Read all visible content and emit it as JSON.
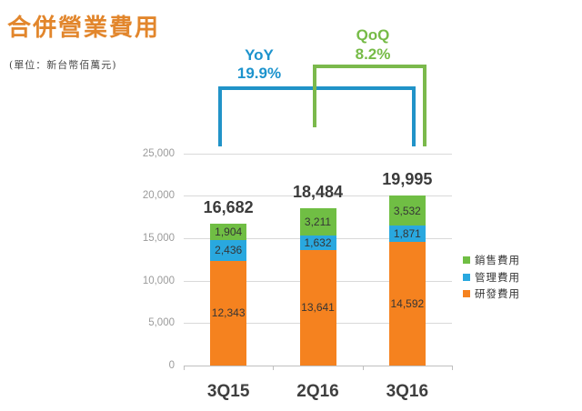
{
  "page": {
    "title": "合併營業費用",
    "subtitle": "(單位：新台幣佰萬元)"
  },
  "annotations": {
    "yoy": {
      "label": "YoY",
      "value": "19.9%",
      "color": "#1C93CD"
    },
    "qoq": {
      "label": "QoQ",
      "value": "8.2%",
      "color": "#76BB47"
    }
  },
  "legend": [
    {
      "label": "銷售費用",
      "color": "#70BE44"
    },
    {
      "label": "管理費用",
      "color": "#29A8DF"
    },
    {
      "label": "研發費用",
      "color": "#F5821F"
    }
  ],
  "chart_data": {
    "type": "bar",
    "stacked": true,
    "title": "合併營業費用",
    "unit_note": "新台幣佰萬元",
    "categories": [
      "3Q15",
      "2Q16",
      "3Q16"
    ],
    "series": [
      {
        "name": "研發費用",
        "color": "#F5821F",
        "values": [
          12343,
          13641,
          14592
        ]
      },
      {
        "name": "管理費用",
        "color": "#29A8DF",
        "values": [
          2436,
          1632,
          1871
        ]
      },
      {
        "name": "銷售費用",
        "color": "#70BE44",
        "values": [
          1904,
          3211,
          3532
        ]
      }
    ],
    "totals": [
      16682,
      18484,
      19995
    ],
    "growth_annotations": [
      {
        "label": "YoY",
        "value": "19.9%",
        "from": "3Q15",
        "to": "3Q16"
      },
      {
        "label": "QoQ",
        "value": "8.2%",
        "from": "2Q16",
        "to": "3Q16"
      }
    ],
    "ylim": [
      0,
      25000
    ],
    "yticks": [
      0,
      5000,
      10000,
      15000,
      20000,
      25000
    ],
    "grid": true,
    "legend_position": "right"
  },
  "colors": {
    "title": "#E2862C",
    "axis_label": "#9B9B9B",
    "category_label": "#3F3F3F",
    "total_label": "#3B3B3B",
    "segment_label": "#353535",
    "gridline": "#D9D9D9",
    "axis_line": "#BFBFBF",
    "yoy_line": "#2193C8",
    "qoq_line": "#7BB94C"
  }
}
